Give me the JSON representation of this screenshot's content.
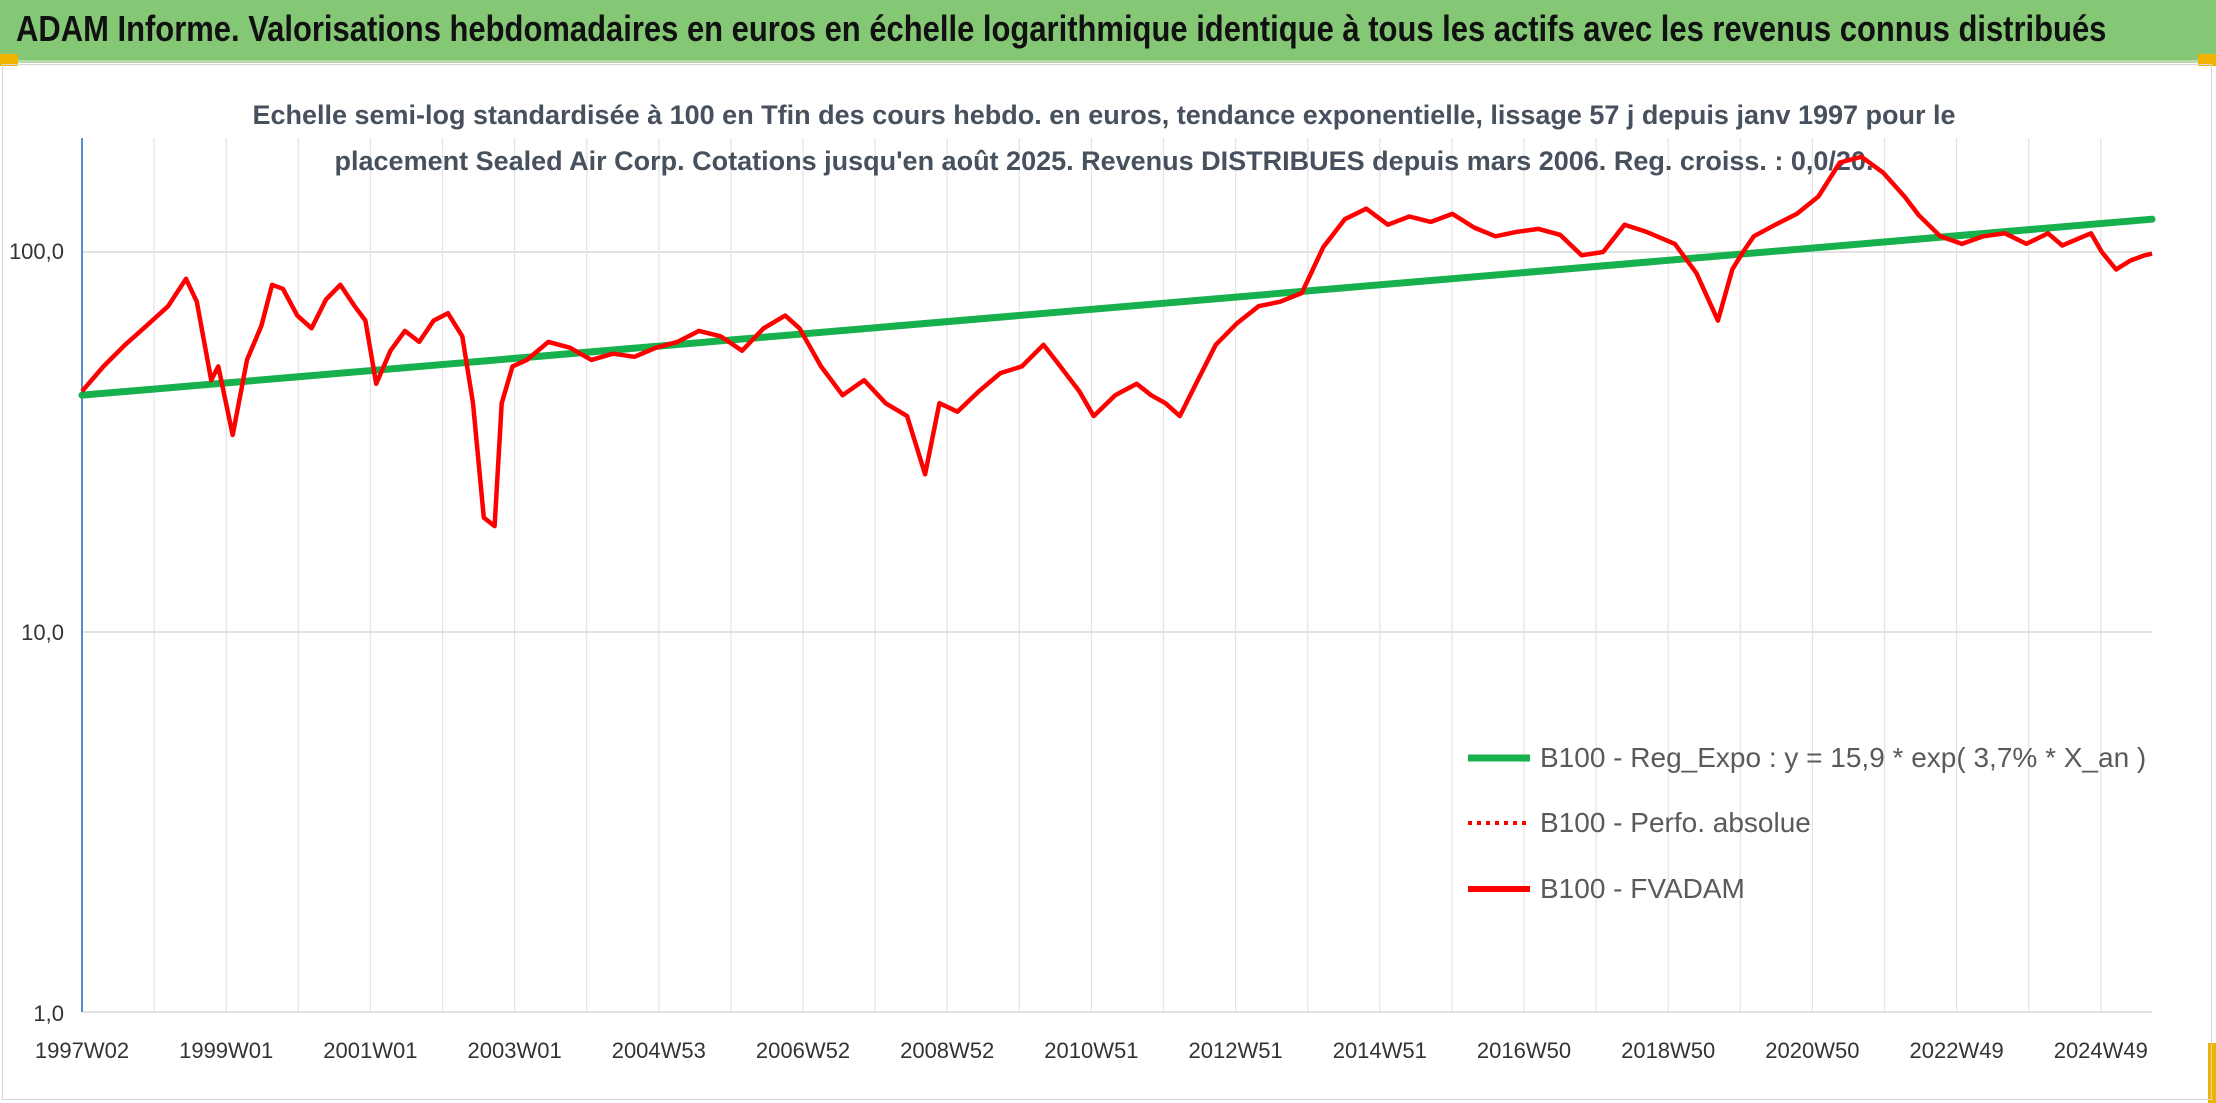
{
  "header": {
    "title": "ADAM Informe. Valorisations hebdomadaires en euros en échelle logarithmique identique à tous les actifs avec les revenus connus distribués"
  },
  "colors": {
    "header_bg": "#84c875",
    "trend_line": "#16b04c",
    "price_line": "#ff0000",
    "corner_accent": "#f0b400"
  },
  "chart_data": {
    "type": "line",
    "title_lines": [
      "Echelle semi-log standardisée à 100 en Tfin des cours hebdo. en euros, tendance exponentielle, lissage 57 j depuis janv 1997 pour le",
      "placement Sealed Air Corp. Cotations jusqu'en août 2025. Revenus DISTRIBUES depuis mars 2006. Reg. croiss. : 0,0/20."
    ],
    "y_scale": "log",
    "ylim": [
      1,
      200
    ],
    "y_ticks": [
      "100,0",
      "10,0",
      "1,0"
    ],
    "xlim": [
      1997.0,
      2025.85
    ],
    "x_ticks": [
      "1997W02",
      "1999W01",
      "2001W01",
      "2003W01",
      "2004W53",
      "2006W52",
      "2008W52",
      "2010W51",
      "2012W51",
      "2014W51",
      "2016W50",
      "2018W50",
      "2020W50",
      "2022W49",
      "2024W49"
    ],
    "grid": "vertical",
    "legend": {
      "position": "bottom-right",
      "entries": [
        "B100 - Reg_Expo : y = 15,9 * exp( 3,7% *  X_an )",
        "B100 - Perfo. absolue",
        "B100 - FVADAM"
      ]
    },
    "series": [
      {
        "name": "B100 - Reg_Expo : y = 15,9 * exp( 3,7% *  X_an )",
        "style": "solid-thick",
        "x": [
          1997.0,
          2025.85
        ],
        "y": [
          42,
          122
        ]
      },
      {
        "name": "B100 - Perfo. absolue",
        "style": "dotted",
        "x": [],
        "y": []
      },
      {
        "name": "B100 - FVADAM",
        "style": "solid",
        "x": [
          1997.0,
          1997.3,
          1997.6,
          1997.9,
          1998.2,
          1998.45,
          1998.6,
          1998.8,
          1998.9,
          1999.1,
          1999.3,
          1999.5,
          1999.65,
          1999.8,
          2000.0,
          2000.2,
          2000.4,
          2000.6,
          2000.8,
          2000.95,
          2001.1,
          2001.3,
          2001.5,
          2001.7,
          2001.9,
          2002.1,
          2002.3,
          2002.45,
          2002.6,
          2002.75,
          2002.85,
          2003.0,
          2003.2,
          2003.5,
          2003.8,
          2004.1,
          2004.4,
          2004.7,
          2005.0,
          2005.3,
          2005.6,
          2005.9,
          2006.2,
          2006.5,
          2006.8,
          2007.0,
          2007.3,
          2007.6,
          2007.9,
          2008.2,
          2008.5,
          2008.75,
          2008.95,
          2009.2,
          2009.5,
          2009.8,
          2010.1,
          2010.4,
          2010.6,
          2010.9,
          2011.1,
          2011.4,
          2011.7,
          2011.9,
          2012.1,
          2012.3,
          2012.5,
          2012.8,
          2013.1,
          2013.4,
          2013.7,
          2014.0,
          2014.3,
          2014.6,
          2014.9,
          2015.2,
          2015.5,
          2015.8,
          2016.1,
          2016.4,
          2016.7,
          2017.0,
          2017.3,
          2017.6,
          2017.9,
          2018.2,
          2018.5,
          2018.8,
          2018.95,
          2019.2,
          2019.5,
          2019.8,
          2020.0,
          2020.15,
          2020.3,
          2020.6,
          2020.9,
          2021.2,
          2021.5,
          2021.8,
          2022.1,
          2022.4,
          2022.6,
          2022.9,
          2023.2,
          2023.5,
          2023.8,
          2024.1,
          2024.4,
          2024.6,
          2024.8,
          2025.0,
          2025.15,
          2025.35,
          2025.55,
          2025.75,
          2025.85
        ],
        "y": [
          43,
          50,
          57,
          64,
          72,
          85,
          74,
          46,
          50,
          33,
          52,
          64,
          82,
          80,
          68,
          63,
          75,
          82,
          72,
          66,
          45,
          55,
          62,
          58,
          66,
          69,
          60,
          40,
          20,
          19,
          40,
          50,
          52,
          58,
          56,
          52,
          54,
          53,
          56,
          58,
          62,
          60,
          55,
          63,
          68,
          63,
          50,
          42,
          46,
          40,
          37,
          26,
          40,
          38,
          43,
          48,
          50,
          57,
          51,
          43,
          37,
          42,
          45,
          42,
          40,
          37,
          44,
          57,
          65,
          72,
          74,
          78,
          103,
          122,
          130,
          118,
          124,
          120,
          126,
          116,
          110,
          113,
          115,
          111,
          98,
          100,
          118,
          113,
          110,
          105,
          88,
          66,
          90,
          100,
          110,
          118,
          126,
          140,
          172,
          178,
          162,
          140,
          125,
          110,
          105,
          110,
          112,
          105,
          112,
          104,
          108,
          112,
          100,
          90,
          95,
          98,
          99
        ]
      }
    ]
  }
}
